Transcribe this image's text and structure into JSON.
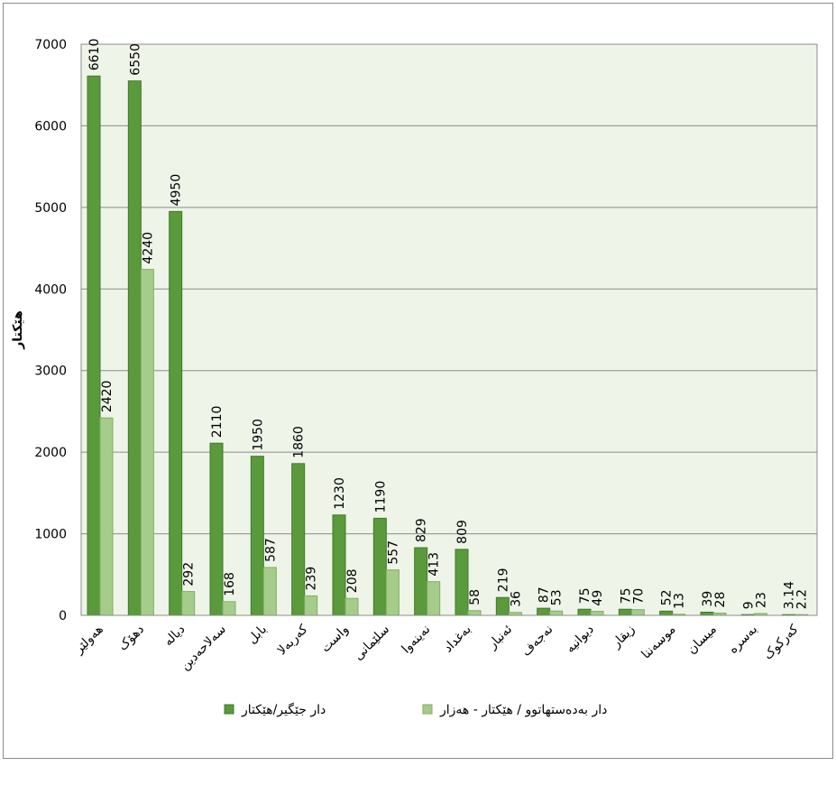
{
  "chart_data": {
    "type": "bar",
    "ylabel": "هێکتار",
    "xlabel": "",
    "title": "",
    "ylim": [
      0,
      7000
    ],
    "yticks": [
      0,
      1000,
      2000,
      3000,
      4000,
      5000,
      6000,
      7000
    ],
    "grid": true,
    "legend_position": "bottom",
    "categories": [
      "هەولێر",
      "دهۆک",
      "دیالە",
      "سەلاحەدین",
      "بابل",
      "کەربەلا",
      "واست",
      "سلێمانی",
      "نەینەوا",
      "بەغداد",
      "ئەنبار",
      "نەجەف",
      "دیوانیە",
      "زیقار",
      "موسەننا",
      "میسان",
      "بەسرە",
      "کەرکوک"
    ],
    "series": [
      {
        "name": "دار جێگیر/هێکتار",
        "color": "#5a9a3c",
        "values": [
          6610,
          6550,
          4950,
          2110,
          1950,
          1860,
          1230,
          1190,
          829,
          809,
          219,
          87,
          75,
          75,
          52,
          39,
          9,
          3.14
        ],
        "labels": [
          "6610",
          "6550",
          "4950",
          "2110",
          "1950",
          "1860",
          "1230",
          "1190",
          "829",
          "809",
          "219",
          "87",
          "75",
          "75",
          "52",
          "39",
          "9",
          "3.14"
        ]
      },
      {
        "name": "دار بەدەستهاتوو / هێکتار - هەزار",
        "color": "#a6cc8c",
        "values": [
          2420,
          4240,
          292,
          168,
          587,
          239,
          208,
          557,
          413,
          58,
          36,
          53,
          49,
          70,
          13,
          28,
          23,
          2.2
        ],
        "labels": [
          "2420",
          "4240",
          "292",
          "168",
          "587",
          "239",
          "208",
          "557",
          "413",
          "58",
          "36",
          "53",
          "49",
          "70",
          "13",
          "28",
          "23",
          "2.2"
        ]
      }
    ],
    "plot_background": "#eef4e8"
  }
}
